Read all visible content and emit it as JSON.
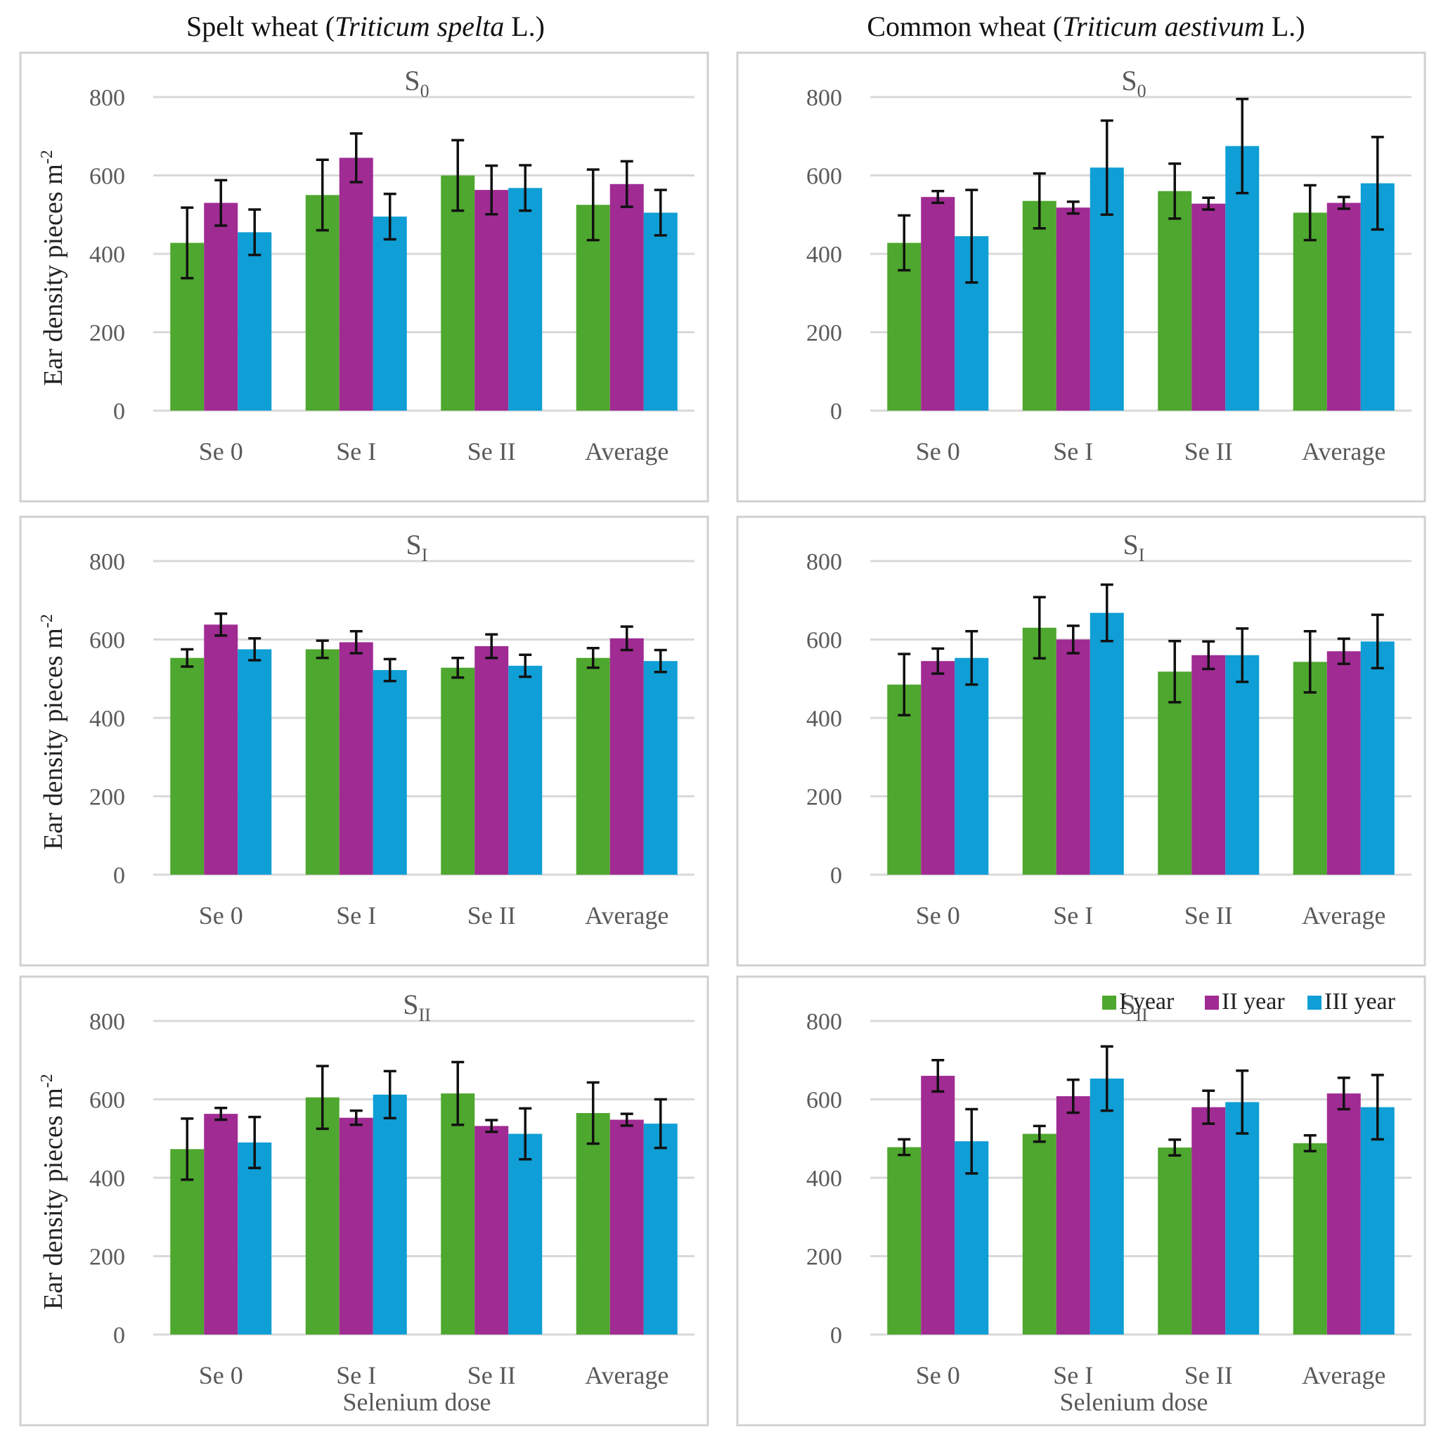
{
  "column_titles": [
    {
      "prefix": "Spelt wheat (",
      "species": "Triticum spelta",
      "suffix": " L.)"
    },
    {
      "prefix": "Common wheat (",
      "species": "Triticum aestivum",
      "suffix": " L.)"
    }
  ],
  "colors": {
    "I year": "#4ea72e",
    "II year": "#a02b93",
    "III year": "#0f9ed5",
    "frame": "#d0d0d0",
    "grid": "#d9d9d9",
    "text": "#595959"
  },
  "legend": [
    "I year",
    "II year",
    "III year"
  ],
  "chart_data": [
    {
      "type": "bar",
      "panel": "spelt-s0",
      "title": "S",
      "title_sub": "0",
      "ylabel": "Ear density  pieces m",
      "ylabel_sup": "-2",
      "xlabel": "",
      "ylim": [
        0,
        800
      ],
      "yticks": [
        0,
        200,
        400,
        600,
        800
      ],
      "categories": [
        "Se 0",
        "Se I",
        "Se II",
        "Average"
      ],
      "series": [
        {
          "name": "I year",
          "values": [
            428,
            550,
            600,
            525
          ],
          "errors": [
            90,
            90,
            90,
            90
          ]
        },
        {
          "name": "II year",
          "values": [
            530,
            645,
            563,
            578
          ],
          "errors": [
            58,
            62,
            62,
            58
          ]
        },
        {
          "name": "III year",
          "values": [
            455,
            495,
            568,
            505
          ],
          "errors": [
            58,
            58,
            58,
            58
          ]
        }
      ]
    },
    {
      "type": "bar",
      "panel": "common-s0",
      "title": "S",
      "title_sub": "0",
      "ylabel": "",
      "ylabel_sup": "",
      "xlabel": "",
      "ylim": [
        0,
        800
      ],
      "yticks": [
        0,
        200,
        400,
        600,
        800
      ],
      "categories": [
        "Se 0",
        "Se I",
        "Se II",
        "Average"
      ],
      "series": [
        {
          "name": "I year",
          "values": [
            428,
            535,
            560,
            505
          ],
          "errors": [
            70,
            70,
            70,
            70
          ]
        },
        {
          "name": "II year",
          "values": [
            545,
            518,
            528,
            530
          ],
          "errors": [
            15,
            15,
            15,
            15
          ]
        },
        {
          "name": "III year",
          "values": [
            445,
            620,
            675,
            580
          ],
          "errors": [
            118,
            120,
            120,
            118
          ]
        }
      ]
    },
    {
      "type": "bar",
      "panel": "spelt-s1",
      "title": "S",
      "title_sub": "I",
      "ylabel": "Ear density  pieces m",
      "ylabel_sup": "-2",
      "xlabel": "",
      "ylim": [
        0,
        800
      ],
      "yticks": [
        0,
        200,
        400,
        600,
        800
      ],
      "categories": [
        "Se 0",
        "Se I",
        "Se II",
        "Average"
      ],
      "series": [
        {
          "name": "I year",
          "values": [
            553,
            575,
            528,
            553
          ],
          "errors": [
            22,
            22,
            25,
            25
          ]
        },
        {
          "name": "II year",
          "values": [
            638,
            593,
            583,
            603
          ],
          "errors": [
            28,
            28,
            30,
            30
          ]
        },
        {
          "name": "III year",
          "values": [
            575,
            522,
            533,
            545
          ],
          "errors": [
            28,
            28,
            28,
            28
          ]
        }
      ]
    },
    {
      "type": "bar",
      "panel": "common-s1",
      "title": "S",
      "title_sub": "I",
      "ylabel": "",
      "ylabel_sup": "",
      "xlabel": "",
      "ylim": [
        0,
        800
      ],
      "yticks": [
        0,
        200,
        400,
        600,
        800
      ],
      "categories": [
        "Se 0",
        "Se I",
        "Se II",
        "Average"
      ],
      "series": [
        {
          "name": "I year",
          "values": [
            485,
            630,
            518,
            543
          ],
          "errors": [
            78,
            78,
            78,
            78
          ]
        },
        {
          "name": "II year",
          "values": [
            545,
            600,
            560,
            570
          ],
          "errors": [
            32,
            35,
            35,
            32
          ]
        },
        {
          "name": "III year",
          "values": [
            553,
            668,
            560,
            595
          ],
          "errors": [
            68,
            72,
            68,
            68
          ]
        }
      ]
    },
    {
      "type": "bar",
      "panel": "spelt-s2",
      "title": "S",
      "title_sub": "II",
      "ylabel": "Ear density  pieces m",
      "ylabel_sup": "-2",
      "xlabel": "Selenium dose",
      "ylim": [
        0,
        800
      ],
      "yticks": [
        0,
        200,
        400,
        600,
        800
      ],
      "categories": [
        "Se 0",
        "Se I",
        "Se II",
        "Average"
      ],
      "series": [
        {
          "name": "I year",
          "values": [
            473,
            605,
            615,
            565
          ],
          "errors": [
            78,
            80,
            80,
            78
          ]
        },
        {
          "name": "II year",
          "values": [
            563,
            553,
            532,
            548
          ],
          "errors": [
            15,
            18,
            15,
            15
          ]
        },
        {
          "name": "III year",
          "values": [
            490,
            612,
            512,
            538
          ],
          "errors": [
            65,
            60,
            65,
            62
          ]
        }
      ]
    },
    {
      "type": "bar",
      "panel": "common-s2",
      "title": "S",
      "title_sub": "II",
      "ylabel": "",
      "ylabel_sup": "",
      "xlabel": "Selenium dose",
      "ylim": [
        0,
        800
      ],
      "yticks": [
        0,
        200,
        400,
        600,
        800
      ],
      "categories": [
        "Se 0",
        "Se I",
        "Se II",
        "Average"
      ],
      "series": [
        {
          "name": "I year",
          "values": [
            478,
            512,
            477,
            488
          ],
          "errors": [
            20,
            20,
            20,
            20
          ]
        },
        {
          "name": "II year",
          "values": [
            660,
            608,
            580,
            615
          ],
          "errors": [
            40,
            42,
            42,
            40
          ]
        },
        {
          "name": "III year",
          "values": [
            493,
            653,
            593,
            580
          ],
          "errors": [
            82,
            82,
            80,
            82
          ]
        }
      ],
      "show_legend": true
    }
  ]
}
